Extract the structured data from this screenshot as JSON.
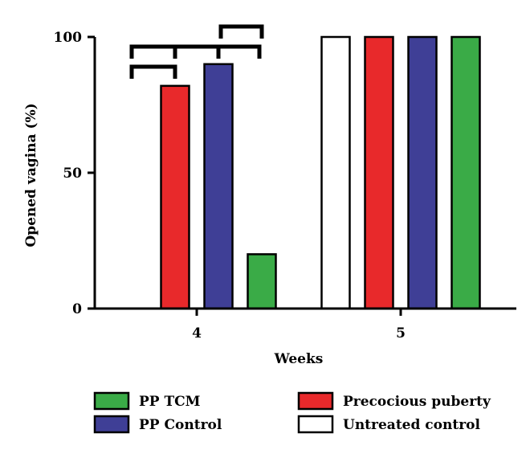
{
  "chart_data": {
    "type": "bar",
    "xlabel": "Weeks",
    "ylabel": "Opened vagina (%)",
    "ylim": [
      0,
      100
    ],
    "yticks": [
      "0",
      "50",
      "100"
    ],
    "categories": [
      "4",
      "5"
    ],
    "series": [
      {
        "name": "Untreated control",
        "color": "#ffffff",
        "values": [
          0,
          100
        ]
      },
      {
        "name": "Precocious puberty",
        "color": "#e8292b",
        "values": [
          82,
          100
        ]
      },
      {
        "name": "PP Control",
        "color": "#3f3f96",
        "values": [
          90,
          100
        ]
      },
      {
        "name": "PP TCM",
        "color": "#3aab47",
        "values": [
          20,
          100
        ]
      }
    ],
    "significance_brackets": [
      {
        "category": "4",
        "from": "Untreated control",
        "to": "Precocious puberty"
      },
      {
        "category": "4",
        "from": "Untreated control",
        "to": "PP Control"
      },
      {
        "category": "4",
        "from": "Precocious puberty",
        "to": "PP TCM"
      },
      {
        "category": "4",
        "from": "PP Control",
        "to": "PP TCM"
      }
    ],
    "legend": {
      "placement": "bottom",
      "order": [
        "PP TCM",
        "Precocious puberty",
        "PP Control",
        "Untreated control"
      ]
    },
    "grid": false
  }
}
